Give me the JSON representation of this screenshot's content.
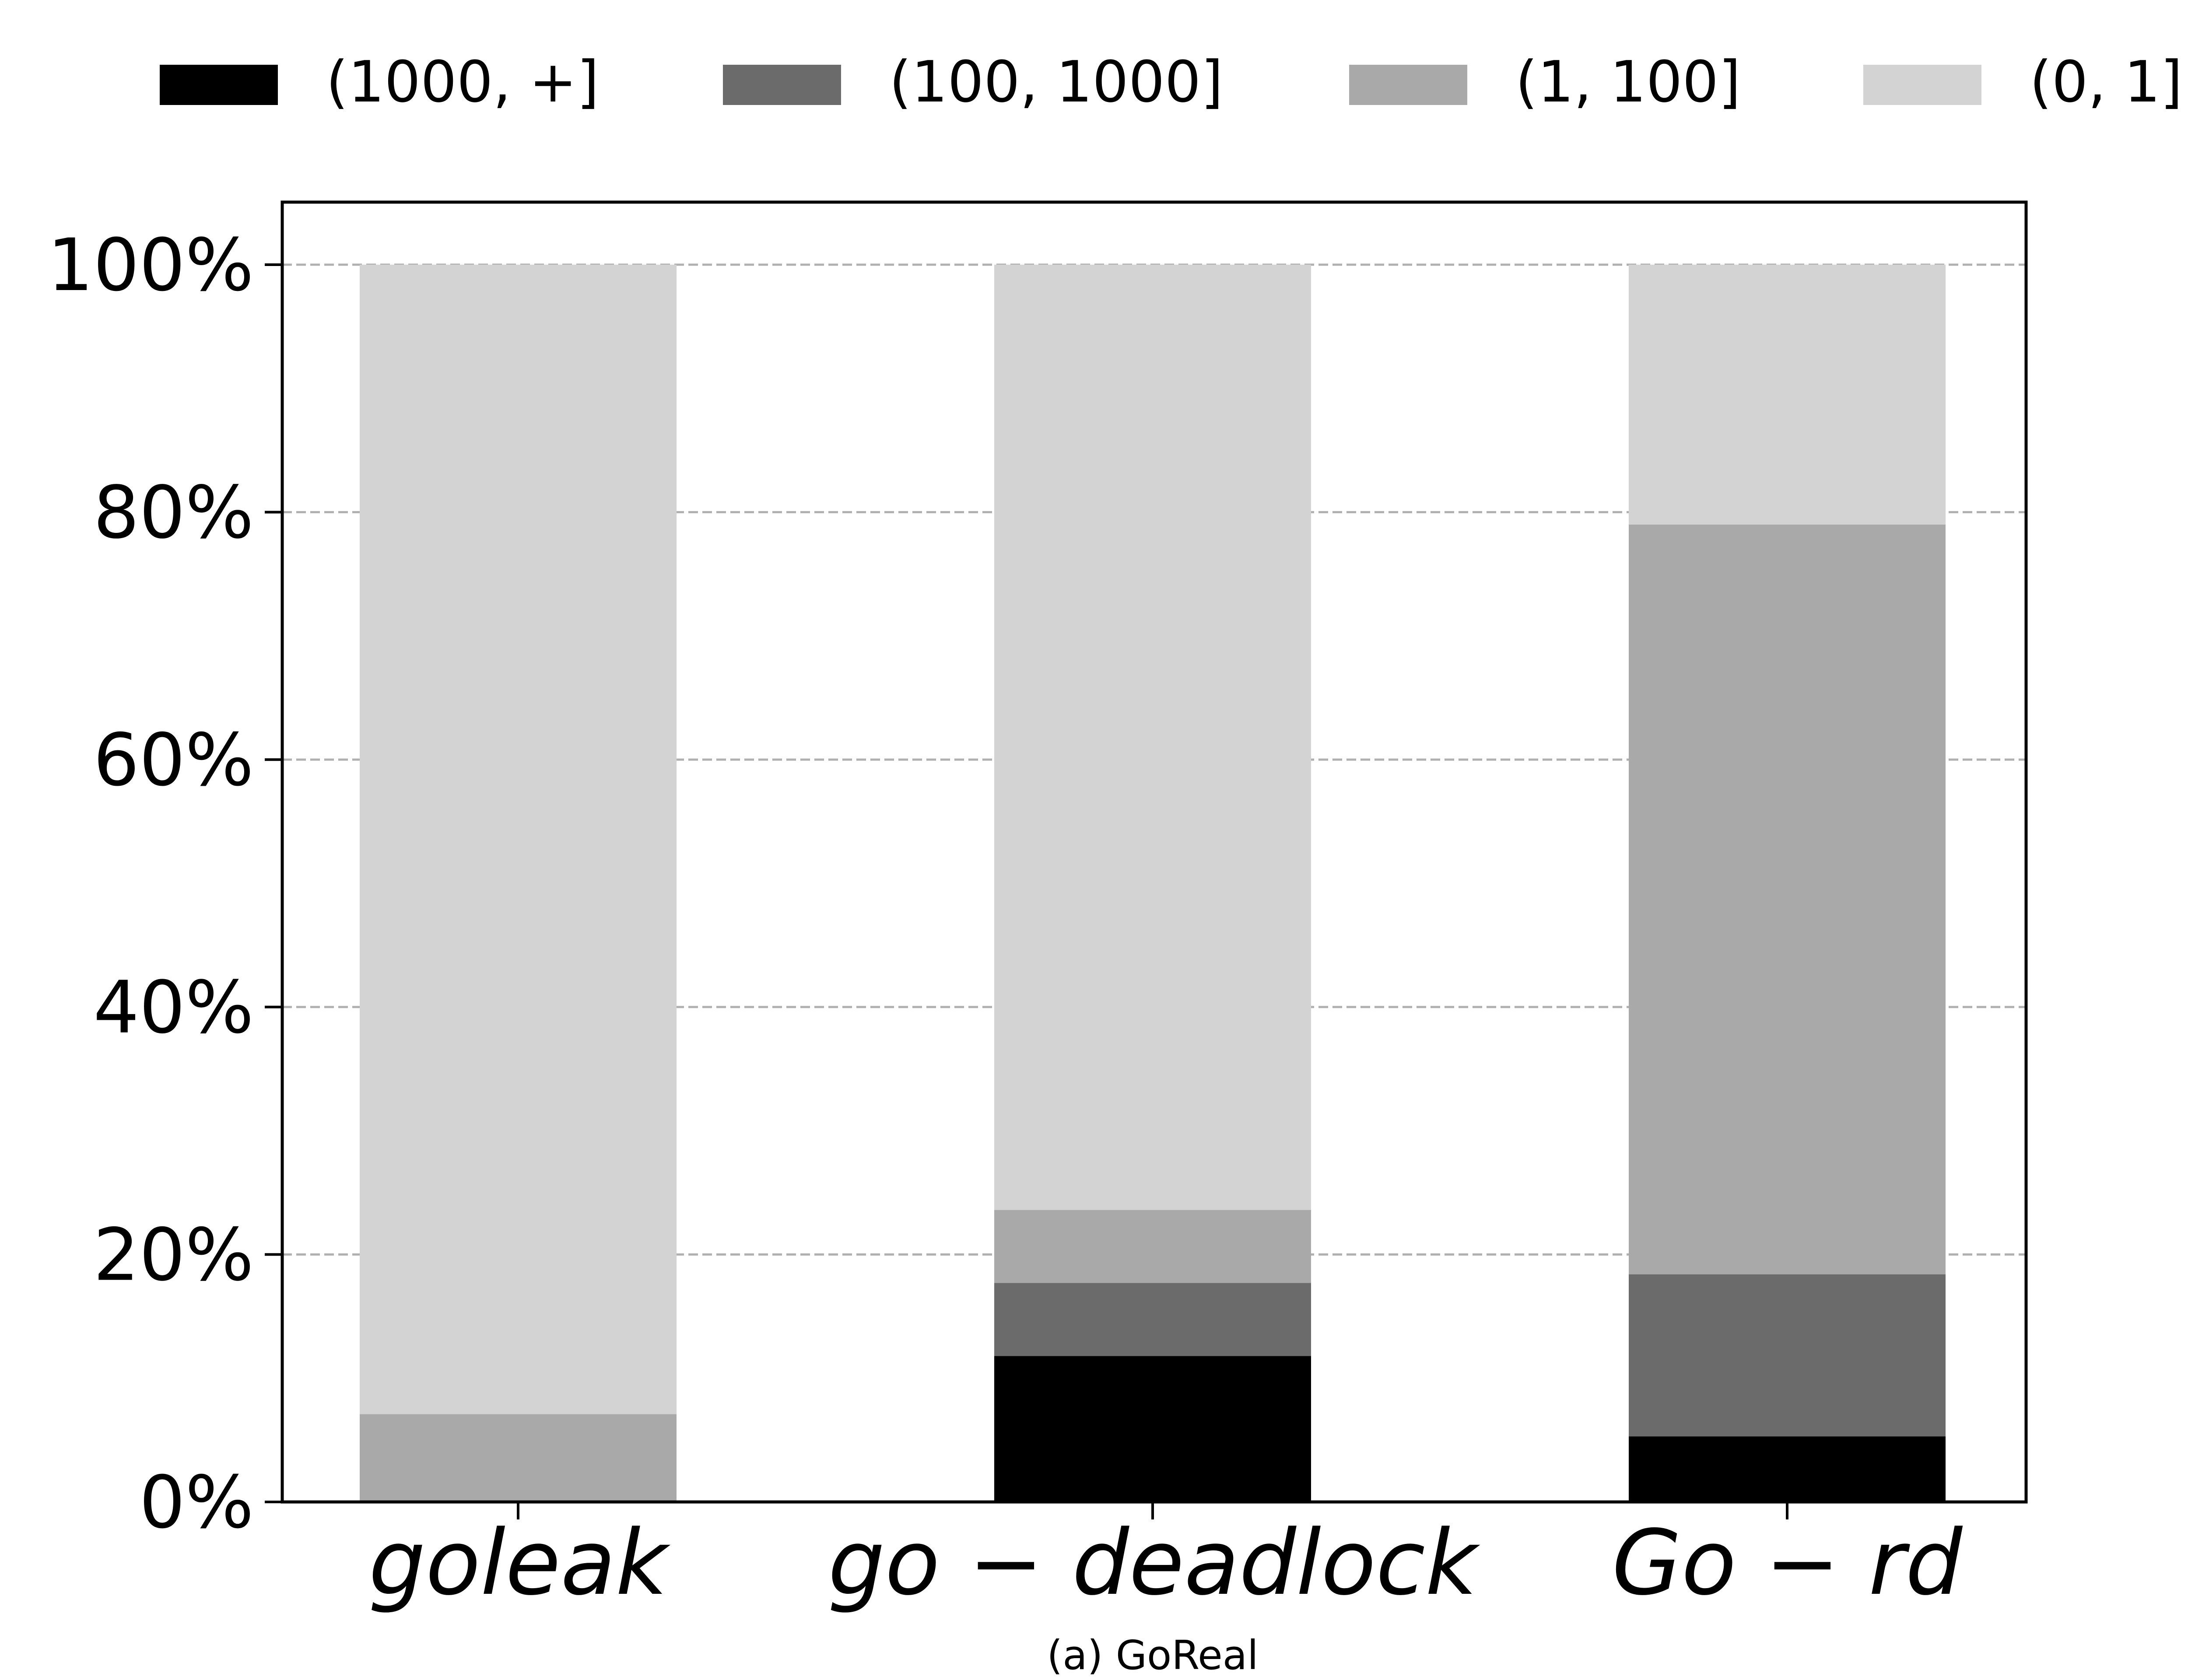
{
  "chart_data": {
    "type": "bar",
    "stacked": true,
    "caption": "(a) GoReal",
    "categories": [
      "goleak",
      "go − deadlock",
      "Go − rd"
    ],
    "ylim": [
      0,
      100
    ],
    "yticks": [
      0,
      20,
      40,
      60,
      80,
      100
    ],
    "ytick_labels": [
      "0%",
      "20%",
      "40%",
      "60%",
      "80%",
      "100%"
    ],
    "grid": "horizontal dashed",
    "legend_position": "top",
    "series": [
      {
        "name": "(1000, +]",
        "color": "#000000",
        "values": [
          0,
          11.8,
          5.3
        ]
      },
      {
        "name": "(100, 1000]",
        "color": "#6b6b6b",
        "values": [
          0,
          5.9,
          13.1
        ]
      },
      {
        "name": "(1, 100]",
        "color": "#a9a9a9",
        "values": [
          7.1,
          5.9,
          60.6
        ]
      },
      {
        "name": "(0, 1]",
        "color": "#d3d3d3",
        "values": [
          92.9,
          76.4,
          21.0
        ]
      }
    ]
  }
}
